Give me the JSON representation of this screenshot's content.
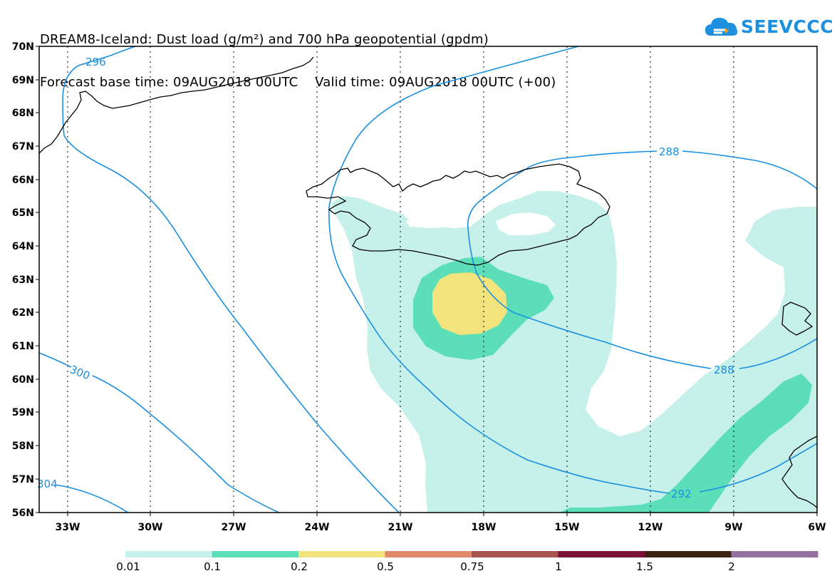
{
  "title": {
    "line1": "DREAM8-Iceland: Dust load (g/m²) and 700 hPa geopotential (gpdm)",
    "line2": "Forecast base time: 09AUG2018 00UTC    Valid time: 09AUG2018 00UTC (+00)"
  },
  "logo": {
    "text": "SEEVCCC",
    "icon": "cloud-icon"
  },
  "map": {
    "lat_labels": [
      "70N",
      "69N",
      "68N",
      "67N",
      "66N",
      "65N",
      "64N",
      "63N",
      "62N",
      "61N",
      "60N",
      "59N",
      "58N",
      "57N",
      "56N"
    ],
    "lon_labels": [
      "33W",
      "30W",
      "27W",
      "24W",
      "21W",
      "18W",
      "15W",
      "12W",
      "9W",
      "6W"
    ],
    "lat_range": [
      56,
      70
    ],
    "lon_range": [
      -34.5,
      -6
    ],
    "contour_labels": [
      "296",
      "300",
      "304",
      "288",
      "288",
      "292"
    ],
    "contour_color": "#1a8fe0",
    "coast_color": "#000000"
  },
  "colorbar": {
    "labels": [
      "0.01",
      "0.1",
      "0.2",
      "0.5",
      "0.75",
      "1",
      "1.5",
      "2"
    ],
    "colors": [
      "#c6f1ea",
      "#5cdfb9",
      "#f3e37c",
      "#e0896b",
      "#a85552",
      "#7b1233",
      "#3b2413",
      "#95719f"
    ]
  }
}
